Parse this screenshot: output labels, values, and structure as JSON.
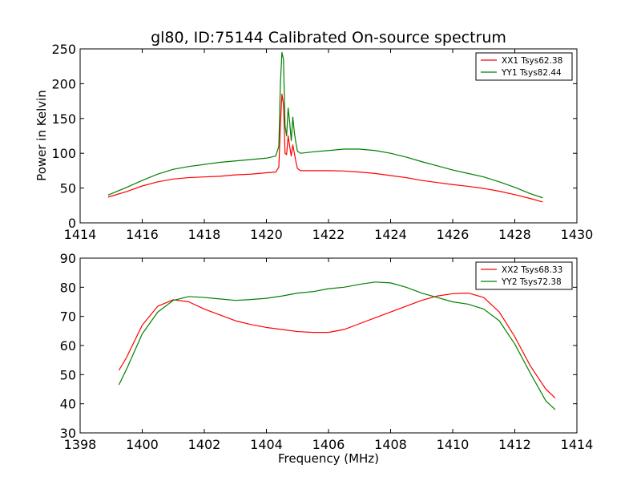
{
  "chart_data": [
    {
      "type": "line",
      "title": "gl80, ID:75144 Calibrated On-source spectrum",
      "xlabel": "",
      "ylabel": "Power in Kelvin",
      "xlim": [
        1414,
        1430
      ],
      "ylim": [
        0,
        250
      ],
      "xticks": [
        1414,
        1416,
        1418,
        1420,
        1422,
        1424,
        1426,
        1428,
        1430
      ],
      "yticks": [
        0,
        50,
        100,
        150,
        200,
        250
      ],
      "grid": false,
      "legend_position": "top-right",
      "series": [
        {
          "name": "XX1 Tsys62.38",
          "color": "#ff0000",
          "x": [
            1414.9,
            1415.5,
            1416.0,
            1416.5,
            1417.0,
            1417.5,
            1418.0,
            1418.5,
            1419.0,
            1419.5,
            1420.0,
            1420.3,
            1420.4,
            1420.45,
            1420.5,
            1420.55,
            1420.6,
            1420.65,
            1420.7,
            1420.75,
            1420.8,
            1420.85,
            1420.9,
            1420.95,
            1421.0,
            1421.1,
            1421.3,
            1421.5,
            1422.0,
            1422.5,
            1423.0,
            1423.5,
            1424.0,
            1424.5,
            1425.0,
            1425.5,
            1426.0,
            1426.5,
            1427.0,
            1427.5,
            1428.0,
            1428.5,
            1428.9
          ],
          "y": [
            37,
            45,
            53,
            59,
            63,
            65,
            66,
            67,
            69,
            70,
            72,
            73,
            80,
            140,
            185,
            170,
            100,
            98,
            125,
            110,
            96,
            112,
            100,
            88,
            78,
            75,
            75,
            75,
            75,
            74.5,
            73,
            71,
            68,
            65,
            61,
            58,
            55,
            52.5,
            49.5,
            45.5,
            40.5,
            35,
            30
          ]
        },
        {
          "name": "YY1 Tsys82.44",
          "color": "#008000",
          "x": [
            1414.9,
            1415.5,
            1416.0,
            1416.5,
            1417.0,
            1417.5,
            1418.0,
            1418.5,
            1419.0,
            1419.5,
            1420.0,
            1420.3,
            1420.4,
            1420.45,
            1420.5,
            1420.55,
            1420.6,
            1420.65,
            1420.7,
            1420.75,
            1420.8,
            1420.85,
            1420.9,
            1420.95,
            1421.0,
            1421.1,
            1421.3,
            1421.5,
            1422.0,
            1422.5,
            1423.0,
            1423.5,
            1424.0,
            1424.5,
            1425.0,
            1425.5,
            1426.0,
            1426.5,
            1427.0,
            1427.5,
            1428.0,
            1428.5,
            1428.9
          ],
          "y": [
            40,
            51,
            61,
            70,
            77,
            81,
            84,
            87,
            89,
            91,
            93,
            96,
            110,
            200,
            245,
            235,
            140,
            125,
            165,
            145,
            118,
            152,
            130,
            115,
            103,
            100,
            101,
            102,
            104,
            106,
            106,
            104,
            100,
            94.5,
            88,
            82,
            76,
            71,
            66,
            59,
            51,
            42,
            36
          ]
        }
      ]
    },
    {
      "type": "line",
      "title": "",
      "xlabel": "Frequency (MHz)",
      "ylabel": "",
      "xlim": [
        1398,
        1414
      ],
      "ylim": [
        30,
        90
      ],
      "xticks": [
        1398,
        1400,
        1402,
        1404,
        1406,
        1408,
        1410,
        1412,
        1414
      ],
      "yticks": [
        30,
        40,
        50,
        60,
        70,
        80,
        90
      ],
      "grid": false,
      "legend_position": "top-right",
      "series": [
        {
          "name": "XX2 Tsys68.33",
          "color": "#ff0000",
          "x": [
            1399.25,
            1399.5,
            1400.0,
            1400.5,
            1401.0,
            1401.5,
            1402.0,
            1402.5,
            1403.0,
            1403.5,
            1404.0,
            1404.5,
            1405.0,
            1405.5,
            1406.0,
            1406.5,
            1407.0,
            1407.5,
            1408.0,
            1408.5,
            1409.0,
            1409.5,
            1410.0,
            1410.5,
            1411.0,
            1411.5,
            1412.0,
            1412.5,
            1413.0,
            1413.3
          ],
          "y": [
            51.5,
            56,
            67,
            73.5,
            75.7,
            75,
            72.5,
            70.5,
            68.5,
            67.2,
            66.2,
            65.5,
            64.8,
            64.5,
            64.5,
            65.5,
            67.5,
            69.5,
            71.5,
            73.5,
            75.5,
            77,
            77.8,
            78,
            76.5,
            71.5,
            63,
            53,
            45,
            42
          ]
        },
        {
          "name": "YY2 Tsys72.38",
          "color": "#008000",
          "x": [
            1399.25,
            1399.5,
            1400.0,
            1400.5,
            1401.0,
            1401.5,
            1402.0,
            1402.5,
            1403.0,
            1403.5,
            1404.0,
            1404.5,
            1405.0,
            1405.5,
            1406.0,
            1406.5,
            1407.0,
            1407.5,
            1408.0,
            1408.5,
            1409.0,
            1409.5,
            1410.0,
            1410.5,
            1411.0,
            1411.5,
            1412.0,
            1412.5,
            1413.0,
            1413.3
          ],
          "y": [
            46.5,
            52,
            64,
            71.5,
            75.5,
            76.8,
            76.5,
            76,
            75.5,
            75.8,
            76.2,
            77,
            78,
            78.5,
            79.5,
            80,
            81,
            81.8,
            81.5,
            80,
            78,
            76.5,
            75,
            74.2,
            72.5,
            68.5,
            60.5,
            50.5,
            41,
            38
          ]
        }
      ]
    }
  ]
}
